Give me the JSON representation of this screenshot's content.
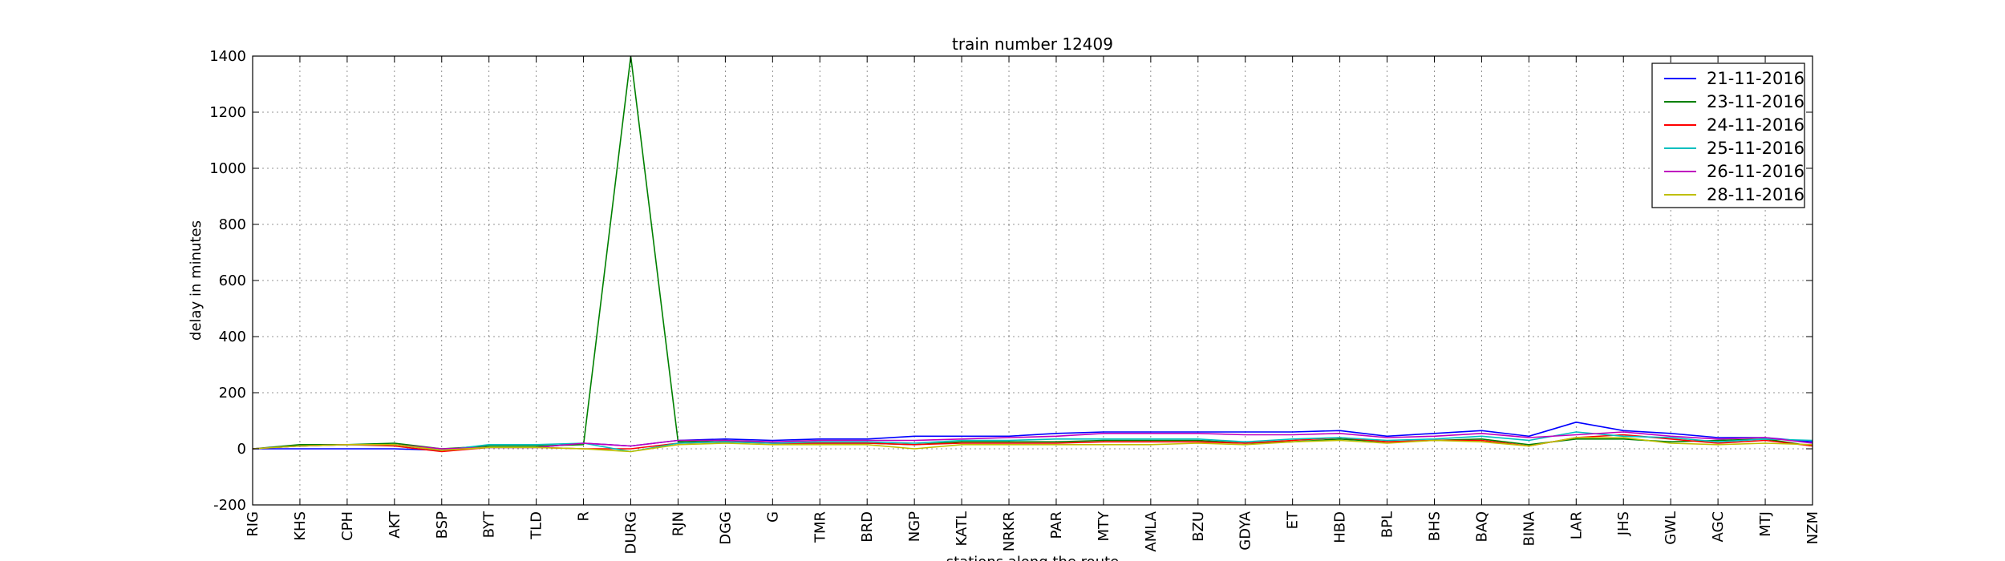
{
  "chart_data": {
    "type": "line",
    "title": "train number 12409",
    "xlabel": "stations along the route",
    "ylabel": "delay in minutes",
    "ylim": [
      -200,
      1400
    ],
    "yticks": [
      -200,
      0,
      200,
      400,
      600,
      800,
      1000,
      1200,
      1400
    ],
    "grid": true,
    "legend_position": "top-right",
    "categories": [
      "RIG",
      "KHS",
      "CPH",
      "AKT",
      "BSP",
      "BYT",
      "TLD",
      "R",
      "DURG",
      "RJN",
      "DGG",
      "G",
      "TMR",
      "BRD",
      "NGP",
      "KATL",
      "NRKR",
      "PAR",
      "MTY",
      "AMLA",
      "BZU",
      "GDYA",
      "ET",
      "HBD",
      "BPL",
      "BHS",
      "BAQ",
      "BINA",
      "LAR",
      "JHS",
      "GWL",
      "AGC",
      "MTJ",
      "NZM"
    ],
    "series": [
      {
        "name": "21-11-2016",
        "color": "#0000ff",
        "values": [
          0,
          0,
          0,
          0,
          -5,
          5,
          5,
          20,
          10,
          30,
          35,
          30,
          35,
          35,
          45,
          45,
          45,
          55,
          60,
          60,
          60,
          60,
          60,
          65,
          45,
          55,
          65,
          45,
          95,
          65,
          55,
          40,
          40,
          25
        ]
      },
      {
        "name": "23-11-2016",
        "color": "#008000",
        "values": [
          0,
          15,
          15,
          20,
          0,
          10,
          10,
          15,
          1400,
          25,
          30,
          20,
          20,
          20,
          15,
          25,
          25,
          25,
          30,
          30,
          30,
          20,
          25,
          35,
          25,
          30,
          35,
          15,
          35,
          35,
          25,
          30,
          35,
          10
        ]
      },
      {
        "name": "24-11-2016",
        "color": "#ff0000",
        "values": [
          0,
          10,
          15,
          10,
          -10,
          5,
          5,
          0,
          0,
          20,
          25,
          20,
          20,
          20,
          15,
          20,
          20,
          20,
          25,
          25,
          25,
          20,
          30,
          40,
          25,
          30,
          30,
          10,
          40,
          50,
          35,
          20,
          30,
          10
        ]
      },
      {
        "name": "25-11-2016",
        "color": "#00bfbf",
        "values": [
          0,
          10,
          15,
          15,
          -5,
          15,
          15,
          20,
          -10,
          20,
          25,
          20,
          25,
          25,
          20,
          30,
          30,
          35,
          35,
          35,
          35,
          25,
          35,
          40,
          30,
          35,
          45,
          30,
          60,
          45,
          40,
          25,
          35,
          30
        ]
      },
      {
        "name": "26-11-2016",
        "color": "#bf00bf",
        "values": [
          0,
          10,
          15,
          15,
          0,
          5,
          5,
          20,
          10,
          30,
          30,
          25,
          30,
          30,
          30,
          35,
          40,
          45,
          55,
          55,
          55,
          50,
          50,
          55,
          40,
          45,
          55,
          40,
          50,
          60,
          45,
          35,
          40,
          20
        ]
      },
      {
        "name": "28-11-2016",
        "color": "#bfbf00",
        "values": [
          0,
          10,
          15,
          15,
          -5,
          5,
          5,
          0,
          -10,
          15,
          20,
          15,
          15,
          15,
          0,
          15,
          15,
          15,
          15,
          15,
          20,
          15,
          25,
          30,
          20,
          30,
          25,
          10,
          40,
          40,
          20,
          15,
          20,
          15
        ]
      }
    ]
  }
}
